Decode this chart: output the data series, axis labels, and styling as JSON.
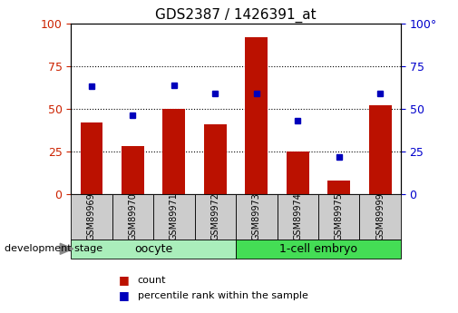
{
  "title": "GDS2387 / 1426391_at",
  "samples": [
    "GSM89969",
    "GSM89970",
    "GSM89971",
    "GSM89972",
    "GSM89973",
    "GSM89974",
    "GSM89975",
    "GSM89999"
  ],
  "counts": [
    42,
    28,
    50,
    41,
    92,
    25,
    8,
    52
  ],
  "percentiles": [
    63,
    46,
    64,
    59,
    59,
    43,
    22,
    59
  ],
  "groups": [
    {
      "label": "oocyte",
      "start": 0,
      "end": 4,
      "color": "#aaeebb"
    },
    {
      "label": "1-cell embryo",
      "start": 4,
      "end": 8,
      "color": "#44dd55"
    }
  ],
  "bar_color": "#bb1100",
  "dot_color": "#0000bb",
  "ylim": [
    0,
    100
  ],
  "yticks": [
    0,
    25,
    50,
    75,
    100
  ],
  "grid_lines": [
    25,
    50,
    75
  ],
  "left_axis_color": "#cc2200",
  "right_axis_color": "#0000cc",
  "tick_label_area_color": "#cccccc",
  "legend_count_label": "count",
  "legend_percentile_label": "percentile rank within the sample",
  "dev_stage_label": "development stage",
  "right_axis_label_100": "100°"
}
